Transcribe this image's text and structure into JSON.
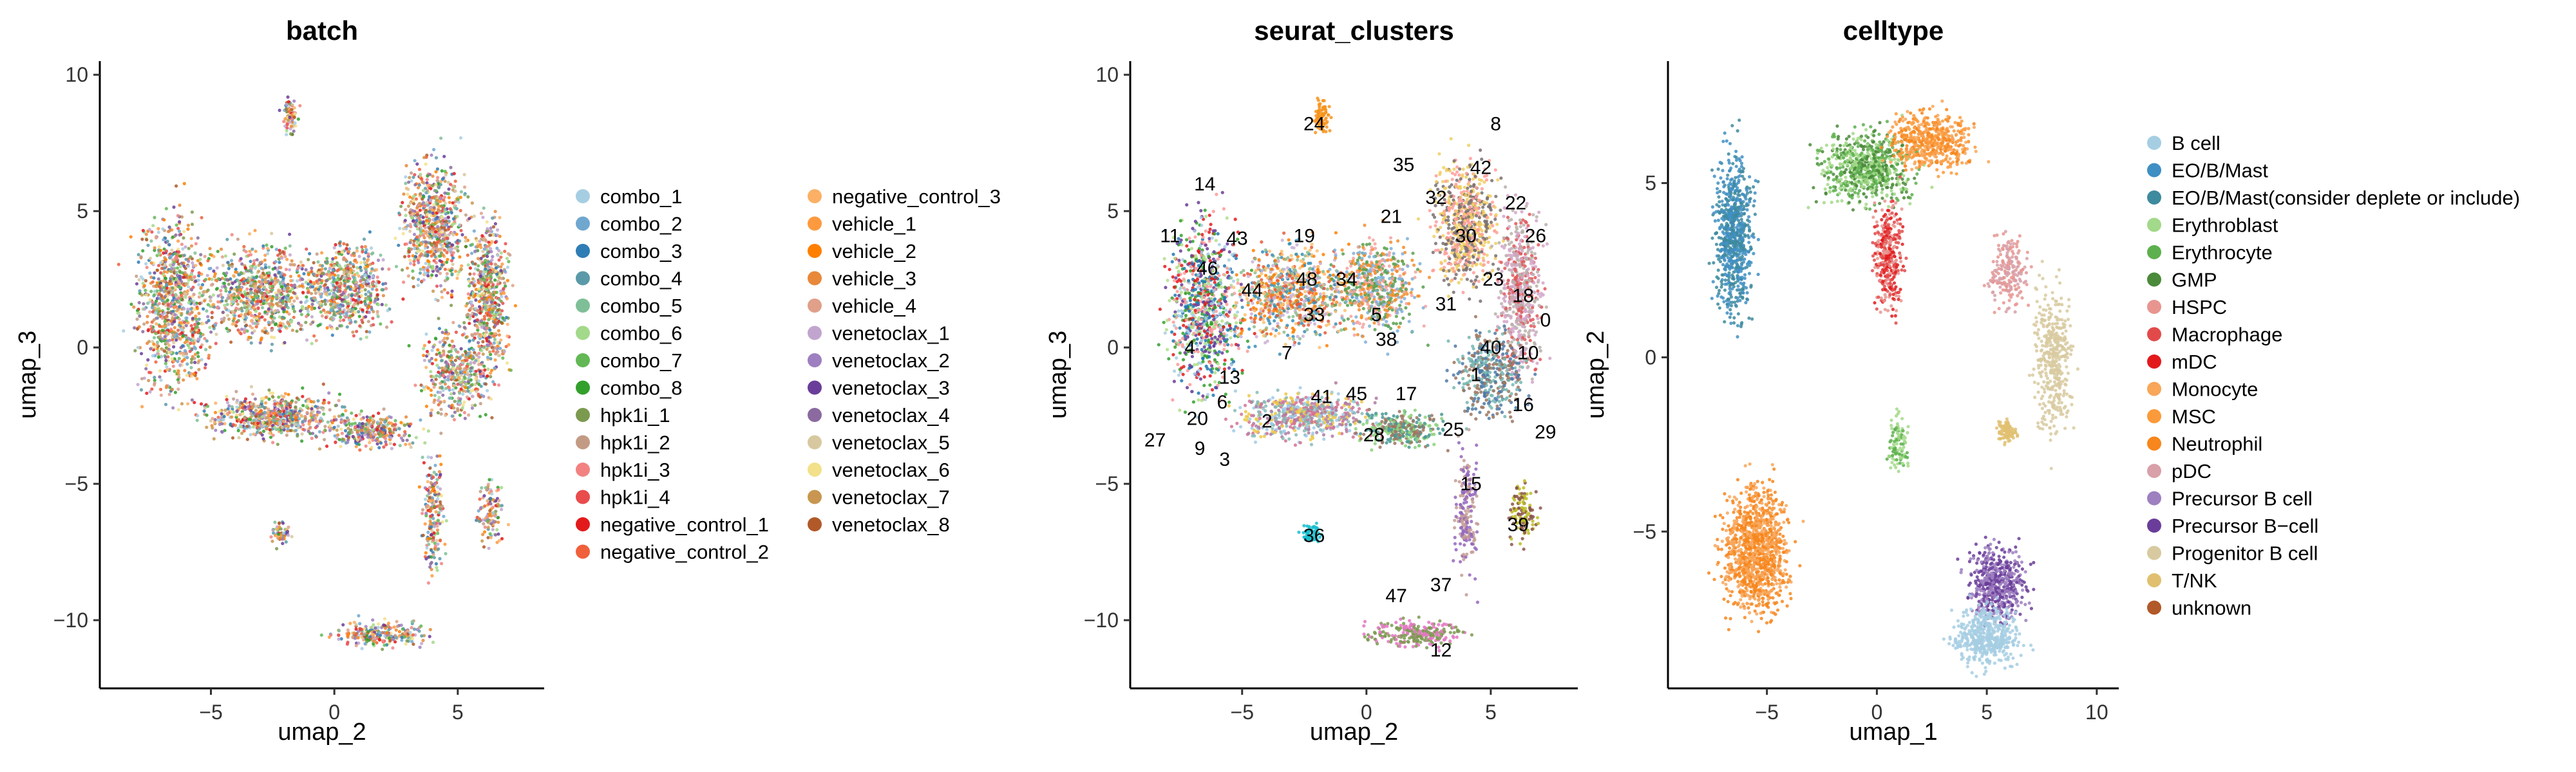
{
  "chart_data": [
    {
      "type": "scatter",
      "title": "batch",
      "xlabel": "umap_2",
      "ylabel": "umap_3",
      "x_ticks": [
        "−5",
        "0",
        "5"
      ],
      "y_ticks": [
        "−10",
        "−5",
        "0",
        "5",
        "10"
      ],
      "xlim": [
        -9.5,
        8.5
      ],
      "ylim": [
        -12.5,
        10.5
      ],
      "grid": false,
      "legend_position": "right",
      "legend": [
        {
          "name": "combo_1",
          "color": "#a6cee3"
        },
        {
          "name": "combo_2",
          "color": "#6fa7cf"
        },
        {
          "name": "combo_3",
          "color": "#2f7db5"
        },
        {
          "name": "combo_4",
          "color": "#5a9aa8"
        },
        {
          "name": "combo_5",
          "color": "#7fbf97"
        },
        {
          "name": "combo_6",
          "color": "#a3d98a"
        },
        {
          "name": "combo_7",
          "color": "#63b855"
        },
        {
          "name": "combo_8",
          "color": "#33a02c"
        },
        {
          "name": "hpk1i_1",
          "color": "#7b9a4f"
        },
        {
          "name": "hpk1i_2",
          "color": "#c39b85"
        },
        {
          "name": "hpk1i_3",
          "color": "#f28282"
        },
        {
          "name": "hpk1i_4",
          "color": "#e94c4d"
        },
        {
          "name": "negative_control_1",
          "color": "#e31a1c"
        },
        {
          "name": "negative_control_2",
          "color": "#f0603b"
        },
        {
          "name": "negative_control_3",
          "color": "#fbb066"
        },
        {
          "name": "vehicle_1",
          "color": "#fd9a3f"
        },
        {
          "name": "vehicle_2",
          "color": "#ff7f00"
        },
        {
          "name": "vehicle_3",
          "color": "#e8883a"
        },
        {
          "name": "vehicle_4",
          "color": "#e0a08a"
        },
        {
          "name": "venetoclax_1",
          "color": "#c2a5cf"
        },
        {
          "name": "venetoclax_2",
          "color": "#9e7fc0"
        },
        {
          "name": "venetoclax_3",
          "color": "#6a3d9a"
        },
        {
          "name": "venetoclax_4",
          "color": "#8b6aa0"
        },
        {
          "name": "venetoclax_5",
          "color": "#d8c8a0"
        },
        {
          "name": "venetoclax_6",
          "color": "#f2e08a"
        },
        {
          "name": "venetoclax_7",
          "color": "#c89650"
        },
        {
          "name": "venetoclax_8",
          "color": "#b15928"
        }
      ]
    },
    {
      "type": "scatter",
      "title": "seurat_clusters",
      "xlabel": "umap_2",
      "ylabel": "umap_3",
      "x_ticks": [
        "−5",
        "0",
        "5"
      ],
      "y_ticks": [
        "−10",
        "−5",
        "0",
        "5",
        "10"
      ],
      "xlim": [
        -9.5,
        8.5
      ],
      "ylim": [
        -12.5,
        10.5
      ],
      "grid": false,
      "cluster_labels": [
        {
          "label": "0",
          "x": 7.2,
          "y": 1.0
        },
        {
          "label": "1",
          "x": 4.4,
          "y": -1.0
        },
        {
          "label": "2",
          "x": -4.0,
          "y": -2.7
        },
        {
          "label": "3",
          "x": -5.7,
          "y": -4.1
        },
        {
          "label": "4",
          "x": -7.1,
          "y": 0.0
        },
        {
          "label": "5",
          "x": 0.4,
          "y": 1.2
        },
        {
          "label": "6",
          "x": -5.8,
          "y": -2.0
        },
        {
          "label": "7",
          "x": -3.2,
          "y": -0.2
        },
        {
          "label": "8",
          "x": 5.2,
          "y": 8.2
        },
        {
          "label": "9",
          "x": -6.7,
          "y": -3.7
        },
        {
          "label": "10",
          "x": 6.5,
          "y": -0.2
        },
        {
          "label": "11",
          "x": -7.9,
          "y": 4.1
        },
        {
          "label": "12",
          "x": 3.0,
          "y": -11.1
        },
        {
          "label": "13",
          "x": -5.5,
          "y": -1.1
        },
        {
          "label": "14",
          "x": -6.5,
          "y": 6.0
        },
        {
          "label": "15",
          "x": 4.2,
          "y": -5.0
        },
        {
          "label": "16",
          "x": 6.3,
          "y": -2.1
        },
        {
          "label": "17",
          "x": 1.6,
          "y": -1.7
        },
        {
          "label": "18",
          "x": 6.3,
          "y": 1.9
        },
        {
          "label": "19",
          "x": -2.5,
          "y": 4.1
        },
        {
          "label": "20",
          "x": -6.8,
          "y": -2.6
        },
        {
          "label": "21",
          "x": 1.0,
          "y": 4.8
        },
        {
          "label": "22",
          "x": 6.0,
          "y": 5.3
        },
        {
          "label": "23",
          "x": 5.1,
          "y": 2.5
        },
        {
          "label": "24",
          "x": -2.1,
          "y": 8.2
        },
        {
          "label": "25",
          "x": 3.5,
          "y": -3.0
        },
        {
          "label": "26",
          "x": 6.8,
          "y": 4.1
        },
        {
          "label": "27",
          "x": -8.5,
          "y": -3.4
        },
        {
          "label": "28",
          "x": 0.3,
          "y": -3.2
        },
        {
          "label": "29",
          "x": 7.2,
          "y": -3.1
        },
        {
          "label": "30",
          "x": 4.0,
          "y": 4.1
        },
        {
          "label": "31",
          "x": 3.2,
          "y": 1.6
        },
        {
          "label": "32",
          "x": 2.8,
          "y": 5.5
        },
        {
          "label": "33",
          "x": -2.1,
          "y": 1.2
        },
        {
          "label": "34",
          "x": -0.8,
          "y": 2.5
        },
        {
          "label": "35",
          "x": 1.5,
          "y": 6.7
        },
        {
          "label": "36",
          "x": -2.1,
          "y": -6.9
        },
        {
          "label": "37",
          "x": 3.0,
          "y": -8.7
        },
        {
          "label": "38",
          "x": 0.8,
          "y": 0.3
        },
        {
          "label": "39",
          "x": 6.1,
          "y": -6.5
        },
        {
          "label": "40",
          "x": 5.0,
          "y": 0.0
        },
        {
          "label": "41",
          "x": -1.8,
          "y": -1.8
        },
        {
          "label": "42",
          "x": 4.6,
          "y": 6.6
        },
        {
          "label": "43",
          "x": -5.2,
          "y": 4.0
        },
        {
          "label": "44",
          "x": -4.6,
          "y": 2.1
        },
        {
          "label": "45",
          "x": -0.4,
          "y": -1.7
        },
        {
          "label": "46",
          "x": -6.4,
          "y": 2.9
        },
        {
          "label": "47",
          "x": 1.2,
          "y": -9.1
        },
        {
          "label": "48",
          "x": -2.4,
          "y": 2.5
        }
      ]
    },
    {
      "type": "scatter",
      "title": "celltype",
      "xlabel": "umap_1",
      "ylabel": "umap_2",
      "x_ticks": [
        "−5",
        "0",
        "5",
        "10"
      ],
      "y_ticks": [
        "−5",
        "0",
        "5"
      ],
      "xlim": [
        -9.5,
        11
      ],
      "ylim": [
        -9.5,
        8.5
      ],
      "grid": false,
      "legend_position": "right",
      "legend": [
        {
          "name": "B cell",
          "color": "#a6cee3"
        },
        {
          "name": "EO/B/Mast",
          "color": "#3f8fc4"
        },
        {
          "name": "EO/B/Mast(consider deplete or include)",
          "color": "#3e8a9e"
        },
        {
          "name": "Erythroblast",
          "color": "#a3d98a"
        },
        {
          "name": "Erythrocyte",
          "color": "#5db04d"
        },
        {
          "name": "GMP",
          "color": "#4a8a3a"
        },
        {
          "name": "HSPC",
          "color": "#e89590"
        },
        {
          "name": "Macrophage",
          "color": "#e24a4a"
        },
        {
          "name": "mDC",
          "color": "#e31a1c"
        },
        {
          "name": "Monocyte",
          "color": "#f8a65a"
        },
        {
          "name": "MSC",
          "color": "#fb9a3a"
        },
        {
          "name": "Neutrophil",
          "color": "#f7861c"
        },
        {
          "name": "pDC",
          "color": "#d8a0a8"
        },
        {
          "name": "Precursor B cell",
          "color": "#9e7fc0"
        },
        {
          "name": "Precursor B−cell",
          "color": "#6a3d9a"
        },
        {
          "name": "Progenitor B cell",
          "color": "#d8caa0"
        },
        {
          "name": "T/NK",
          "color": "#e0c070"
        },
        {
          "name": "unknown",
          "color": "#b15928"
        }
      ]
    }
  ]
}
